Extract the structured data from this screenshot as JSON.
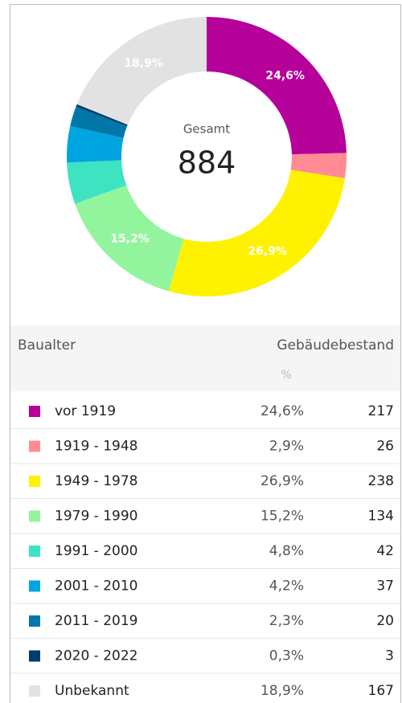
{
  "chart_data": {
    "type": "donut",
    "center_label": "Gesamt",
    "total": 884,
    "categories": [
      "vor 1919",
      "1919 - 1948",
      "1949 - 1978",
      "1979 - 1990",
      "1991 - 2000",
      "2001 - 2010",
      "2011 - 2019",
      "2020 - 2022",
      "Unbekannt"
    ],
    "values": [
      24.6,
      2.9,
      26.9,
      15.2,
      4.8,
      4.2,
      2.3,
      0.3,
      18.9
    ],
    "value_labels": [
      "24,6%",
      null,
      "26,9%",
      "15,2%",
      null,
      null,
      null,
      null,
      "18,9%"
    ],
    "colors": [
      "#b5009a",
      "#ff8c94",
      "#fff200",
      "#92f59e",
      "#3ee3c2",
      "#00a4e0",
      "#0077a6",
      "#003e70",
      "#e2e2e2"
    ]
  },
  "table": {
    "headers": [
      "Baualter",
      "Gebäudebestand"
    ],
    "subheader": "%",
    "rows": [
      {
        "percent": "24,6%",
        "count": 217
      },
      {
        "percent": "2,9%",
        "count": 26
      },
      {
        "percent": "26,9%",
        "count": 238
      },
      {
        "percent": "15,2%",
        "count": 134
      },
      {
        "percent": "4,8%",
        "count": 42
      },
      {
        "percent": "4,2%",
        "count": 37
      },
      {
        "percent": "2,3%",
        "count": 20
      },
      {
        "percent": "0,3%",
        "count": 3
      },
      {
        "percent": "18,9%",
        "count": 167
      }
    ]
  }
}
